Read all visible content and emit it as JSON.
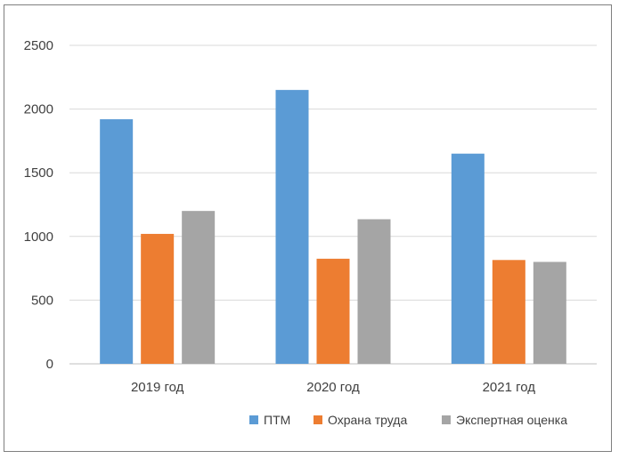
{
  "chart_data": {
    "type": "bar",
    "title": "",
    "xlabel": "",
    "ylabel": "",
    "categories": [
      "2019 год",
      "2020 год",
      "2021 год"
    ],
    "series": [
      {
        "name": "ПТМ",
        "values": [
          1920,
          2150,
          1650
        ],
        "color": "#5b9bd5"
      },
      {
        "name": "Охрана труда",
        "values": [
          1020,
          825,
          815
        ],
        "color": "#ed7d31"
      },
      {
        "name": "Экспертная оценка",
        "values": [
          1200,
          1135,
          800
        ],
        "color": "#a5a5a5"
      }
    ],
    "ylim": [
      0,
      2500
    ],
    "yticks": [
      "0",
      "500",
      "1000",
      "1500",
      "2000",
      "2500"
    ],
    "grid": true,
    "legend_position": "bottom-right"
  }
}
